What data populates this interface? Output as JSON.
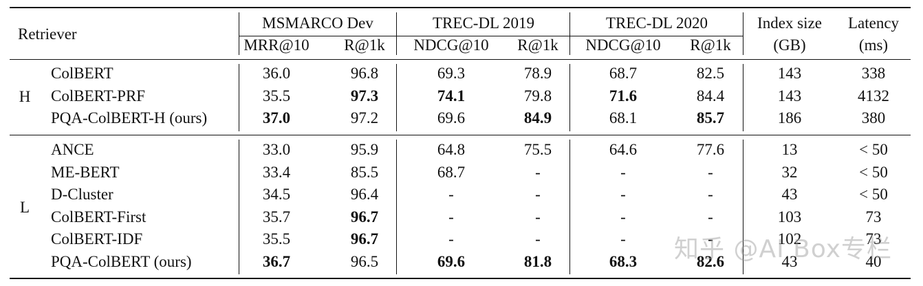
{
  "header": {
    "retriever": "Retriever",
    "groups": [
      "MSMARCO Dev",
      "TREC-DL 2019",
      "TREC-DL 2020"
    ],
    "subcols": [
      "MRR@10",
      "R@1k",
      "NDCG@10",
      "R@1k",
      "NDCG@10",
      "R@1k"
    ],
    "index_size": "Index size",
    "index_unit": "(GB)",
    "latency": "Latency",
    "latency_unit": "(ms)"
  },
  "sections": [
    {
      "label": "H",
      "rows": [
        {
          "name": "ColBERT",
          "values": [
            "36.0",
            "96.8",
            "69.3",
            "78.9",
            "68.7",
            "82.5",
            "143",
            "338"
          ],
          "bold": []
        },
        {
          "name": "ColBERT-PRF",
          "values": [
            "35.5",
            "97.3",
            "74.1",
            "79.8",
            "71.6",
            "84.4",
            "143",
            "4132"
          ],
          "bold": [
            1,
            2,
            4
          ]
        },
        {
          "name": "PQA-ColBERT-H (ours)",
          "values": [
            "37.0",
            "97.2",
            "69.6",
            "84.9",
            "68.1",
            "85.7",
            "186",
            "380"
          ],
          "bold": [
            0,
            3,
            5
          ]
        }
      ]
    },
    {
      "label": "L",
      "rows": [
        {
          "name": "ANCE",
          "values": [
            "33.0",
            "95.9",
            "64.8",
            "75.5",
            "64.6",
            "77.6",
            "13",
            "< 50"
          ],
          "bold": []
        },
        {
          "name": "ME-BERT",
          "values": [
            "33.4",
            "85.5",
            "68.7",
            "-",
            "-",
            "-",
            "32",
            "< 50"
          ],
          "bold": []
        },
        {
          "name": "D-Cluster",
          "values": [
            "34.5",
            "96.4",
            "-",
            "-",
            "-",
            "-",
            "43",
            "< 50"
          ],
          "bold": []
        },
        {
          "name": "ColBERT-First",
          "values": [
            "35.7",
            "96.7",
            "-",
            "-",
            "-",
            "-",
            "103",
            "73"
          ],
          "bold": [
            1
          ]
        },
        {
          "name": "ColBERT-IDF",
          "values": [
            "35.5",
            "96.7",
            "-",
            "-",
            "-",
            "-",
            "102",
            "73"
          ],
          "bold": [
            1
          ]
        },
        {
          "name": "PQA-ColBERT (ours)",
          "values": [
            "36.7",
            "96.5",
            "69.6",
            "81.8",
            "68.3",
            "82.6",
            "43",
            "40"
          ],
          "bold": [
            0,
            2,
            3,
            4,
            5
          ]
        }
      ]
    }
  ],
  "watermark": "知乎 @AI Box专栏"
}
